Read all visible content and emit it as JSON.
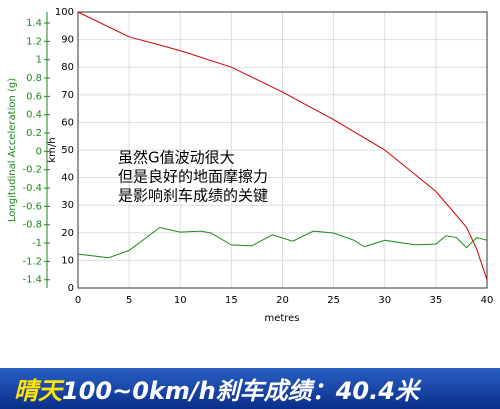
{
  "chart_data": {
    "type": "line",
    "annotation": [
      "虽然G值波动很大",
      "但是良好的地面摩擦力",
      "是影响刹车成绩的关键"
    ],
    "xlabel": "metres",
    "ylabel": "km/h",
    "y2label": "Longitudinal Acceleration (g)",
    "xlim": [
      0,
      40
    ],
    "xticks": [
      0,
      5,
      10,
      15,
      20,
      25,
      30,
      35,
      40
    ],
    "ylim": [
      0,
      100
    ],
    "yticks": [
      0,
      10,
      20,
      30,
      40,
      50,
      60,
      70,
      80,
      90,
      100
    ],
    "y2lim": [
      -1.49,
      1.52
    ],
    "y2ticks": [
      1.4,
      1.2,
      1,
      0.8,
      0.6,
      0.4,
      0.2,
      0,
      -0.2,
      -0.4,
      -0.6,
      -0.8,
      -1,
      -1.2,
      -1.4
    ],
    "grid": true,
    "series": [
      {
        "color": "#d00000",
        "x": [
          0,
          5,
          10,
          15,
          20,
          25,
          30,
          35,
          38,
          39,
          40
        ],
        "values": [
          100,
          91,
          86,
          80,
          71,
          61,
          50,
          35,
          22,
          14,
          3
        ]
      },
      {
        "color": "#1a8a1a",
        "axis": "y2",
        "x": [
          0,
          3,
          5,
          8,
          10,
          12,
          13,
          15,
          17,
          19,
          21,
          23,
          25,
          27,
          28,
          30,
          33,
          35,
          36,
          37,
          38,
          39,
          40
        ],
        "values": [
          -1.12,
          -1.16,
          -1.08,
          -0.83,
          -0.88,
          -0.87,
          -0.89,
          -1.02,
          -1.03,
          -0.91,
          -0.98,
          -0.87,
          -0.89,
          -0.97,
          -1.04,
          -0.97,
          -1.02,
          -1.01,
          -0.92,
          -0.94,
          -1.05,
          -0.94,
          -0.97
        ]
      }
    ]
  },
  "banner": {
    "highlight": "晴天",
    "text": "100~0km/h刹车成绩：40.4米"
  }
}
